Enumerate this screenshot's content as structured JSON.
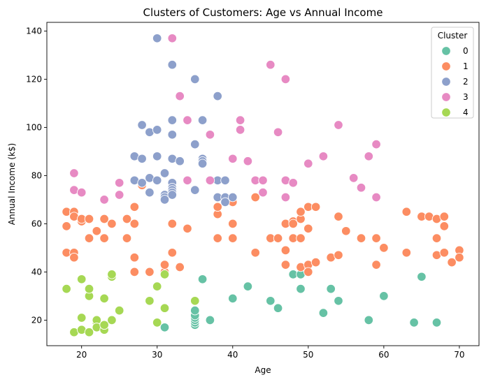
{
  "chart_data": {
    "type": "scatter",
    "title": "Clusters of Customers: Age vs Annual Income",
    "xlabel": "Age",
    "ylabel": "Annual Income (k$)",
    "xlim": [
      15.4,
      72.6
    ],
    "ylim": [
      9.4,
      143.6
    ],
    "xticks": [
      20,
      30,
      40,
      50,
      60,
      70
    ],
    "yticks": [
      20,
      40,
      60,
      80,
      100,
      120,
      140
    ],
    "grid": false,
    "legend": {
      "title": "Cluster",
      "placement": "top-right"
    },
    "series": [
      {
        "name": "0",
        "color": "#66c2a5",
        "points": [
          [
            31,
            17
          ],
          [
            35,
            18
          ],
          [
            35,
            19
          ],
          [
            35,
            20
          ],
          [
            35,
            21
          ],
          [
            35,
            22
          ],
          [
            35,
            24
          ],
          [
            37,
            20
          ],
          [
            36,
            37
          ],
          [
            40,
            29
          ],
          [
            42,
            34
          ],
          [
            45,
            28
          ],
          [
            46,
            25
          ],
          [
            48,
            39
          ],
          [
            49,
            39
          ],
          [
            49,
            33
          ],
          [
            52,
            23
          ],
          [
            53,
            33
          ],
          [
            54,
            28
          ],
          [
            58,
            20
          ],
          [
            60,
            30
          ],
          [
            64,
            19
          ],
          [
            65,
            38
          ],
          [
            67,
            19
          ]
        ]
      },
      {
        "name": "1",
        "color": "#fc8d62",
        "points": [
          [
            18,
            65
          ],
          [
            18,
            59
          ],
          [
            18,
            48
          ],
          [
            19,
            64
          ],
          [
            19,
            65
          ],
          [
            19,
            63
          ],
          [
            19,
            48
          ],
          [
            19,
            46
          ],
          [
            20,
            61
          ],
          [
            20,
            62
          ],
          [
            21,
            62
          ],
          [
            21,
            54
          ],
          [
            22,
            57
          ],
          [
            23,
            62
          ],
          [
            23,
            54
          ],
          [
            24,
            60
          ],
          [
            26,
            62
          ],
          [
            26,
            54
          ],
          [
            27,
            60
          ],
          [
            27,
            67
          ],
          [
            27,
            46
          ],
          [
            27,
            40
          ],
          [
            28,
            76
          ],
          [
            29,
            40
          ],
          [
            31,
            40
          ],
          [
            31,
            43
          ],
          [
            32,
            60
          ],
          [
            32,
            48
          ],
          [
            33,
            42
          ],
          [
            34,
            58
          ],
          [
            38,
            54
          ],
          [
            38,
            64
          ],
          [
            38,
            67
          ],
          [
            39,
            70
          ],
          [
            40,
            69
          ],
          [
            40,
            60
          ],
          [
            40,
            54
          ],
          [
            43,
            71
          ],
          [
            43,
            48
          ],
          [
            45,
            54
          ],
          [
            46,
            54
          ],
          [
            47,
            60
          ],
          [
            47,
            49
          ],
          [
            47,
            43
          ],
          [
            48,
            61
          ],
          [
            48,
            54
          ],
          [
            48,
            60
          ],
          [
            49,
            62
          ],
          [
            49,
            42
          ],
          [
            49,
            54
          ],
          [
            49,
            65
          ],
          [
            50,
            67
          ],
          [
            50,
            58
          ],
          [
            50,
            43
          ],
          [
            50,
            40
          ],
          [
            51,
            67
          ],
          [
            51,
            44
          ],
          [
            53,
            46
          ],
          [
            54,
            63
          ],
          [
            54,
            47
          ],
          [
            55,
            57
          ],
          [
            57,
            54
          ],
          [
            59,
            54
          ],
          [
            59,
            43
          ],
          [
            60,
            50
          ],
          [
            63,
            65
          ],
          [
            63,
            48
          ],
          [
            65,
            63
          ],
          [
            66,
            63
          ],
          [
            67,
            62
          ],
          [
            67,
            54
          ],
          [
            67,
            47
          ],
          [
            68,
            63
          ],
          [
            68,
            59
          ],
          [
            68,
            48
          ],
          [
            69,
            44
          ],
          [
            70,
            49
          ],
          [
            70,
            46
          ]
        ]
      },
      {
        "name": "2",
        "color": "#8da0cb",
        "points": [
          [
            27,
            88
          ],
          [
            27,
            78
          ],
          [
            28,
            77
          ],
          [
            28,
            87
          ],
          [
            28,
            101
          ],
          [
            29,
            98
          ],
          [
            29,
            79
          ],
          [
            29,
            73
          ],
          [
            30,
            137
          ],
          [
            30,
            99
          ],
          [
            30,
            88
          ],
          [
            30,
            78
          ],
          [
            31,
            81
          ],
          [
            31,
            72
          ],
          [
            31,
            71
          ],
          [
            31,
            70
          ],
          [
            32,
            126
          ],
          [
            32,
            103
          ],
          [
            32,
            97
          ],
          [
            32,
            87
          ],
          [
            32,
            77
          ],
          [
            32,
            75
          ],
          [
            32,
            74
          ],
          [
            32,
            73
          ],
          [
            32,
            72
          ],
          [
            33,
            86
          ],
          [
            35,
            120
          ],
          [
            35,
            93
          ],
          [
            35,
            74
          ],
          [
            36,
            103
          ],
          [
            36,
            87
          ],
          [
            36,
            86
          ],
          [
            36,
            85
          ],
          [
            38,
            113
          ],
          [
            38,
            78
          ],
          [
            38,
            71
          ],
          [
            39,
            78
          ],
          [
            39,
            71
          ],
          [
            39,
            69
          ],
          [
            40,
            71
          ]
        ]
      },
      {
        "name": "3",
        "color": "#e78ac3",
        "points": [
          [
            19,
            81
          ],
          [
            19,
            74
          ],
          [
            20,
            73
          ],
          [
            23,
            70
          ],
          [
            25,
            77
          ],
          [
            25,
            72
          ],
          [
            32,
            137
          ],
          [
            33,
            113
          ],
          [
            34,
            103
          ],
          [
            34,
            78
          ],
          [
            37,
            97
          ],
          [
            37,
            78
          ],
          [
            40,
            87
          ],
          [
            41,
            103
          ],
          [
            41,
            99
          ],
          [
            42,
            86
          ],
          [
            43,
            78
          ],
          [
            44,
            78
          ],
          [
            44,
            73
          ],
          [
            45,
            126
          ],
          [
            46,
            98
          ],
          [
            47,
            120
          ],
          [
            47,
            78
          ],
          [
            47,
            71
          ],
          [
            48,
            77
          ],
          [
            50,
            85
          ],
          [
            52,
            88
          ],
          [
            54,
            101
          ],
          [
            56,
            79
          ],
          [
            57,
            75
          ],
          [
            58,
            88
          ],
          [
            59,
            93
          ],
          [
            59,
            71
          ]
        ]
      },
      {
        "name": "4",
        "color": "#a6d854",
        "points": [
          [
            18,
            33
          ],
          [
            19,
            15
          ],
          [
            20,
            16
          ],
          [
            20,
            21
          ],
          [
            20,
            37
          ],
          [
            21,
            15
          ],
          [
            21,
            30
          ],
          [
            21,
            33
          ],
          [
            22,
            19
          ],
          [
            22,
            20
          ],
          [
            22,
            17
          ],
          [
            23,
            16
          ],
          [
            23,
            18
          ],
          [
            23,
            29
          ],
          [
            24,
            38
          ],
          [
            24,
            39
          ],
          [
            24,
            20
          ],
          [
            25,
            24
          ],
          [
            29,
            28
          ],
          [
            30,
            34
          ],
          [
            30,
            19
          ],
          [
            31,
            25
          ],
          [
            31,
            39
          ],
          [
            35,
            28
          ]
        ]
      }
    ]
  }
}
